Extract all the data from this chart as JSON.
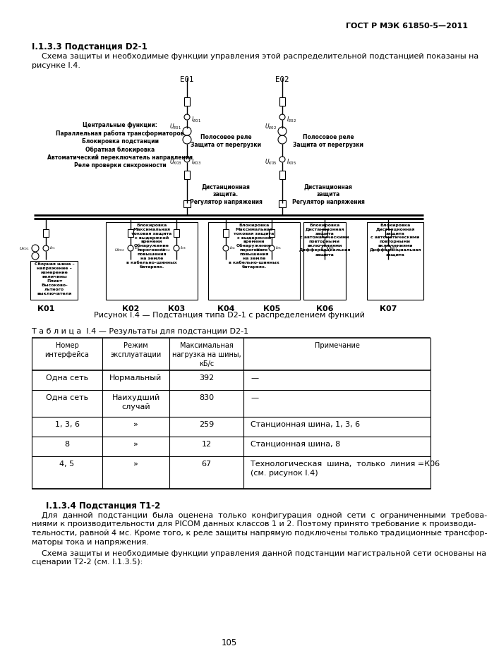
{
  "header": "ГОСТ Р МЭК 61850-5—2011",
  "section_title": "I.1.3.3 Подстанция D2-1",
  "section_intro_line1": "    Схема защиты и необходимые функции управления этой распределительной подстанцией показаны на",
  "section_intro_line2": "рисунке I.4.",
  "figure_caption": "Рисунок I.4 — Подстанция типа D2-1 с распределением функций",
  "table_title": "Т а б л и ц а  I.4 — Результаты для подстанции D2-1",
  "table_headers": [
    "Номер\nинтерфейса",
    "Режим\nэксплуатации",
    "Максимальная\nнагрузка на шины,\nкБ/с",
    "Примечание"
  ],
  "table_data": [
    [
      "Одна сеть",
      "Нормальный",
      "392",
      "—"
    ],
    [
      "Одна сеть",
      "Наихудший\nслучай",
      "830",
      "—"
    ],
    [
      "1, 3, 6",
      "»",
      "259",
      "Станционная шина, 1, 3, 6"
    ],
    [
      "8",
      "»",
      "12",
      "Станционная шина, 8"
    ],
    [
      "4, 5",
      "»",
      "67",
      "Технологическая  шина,  только  линия =К06\n(см. рисунок I.4)"
    ]
  ],
  "section2_title": "I.1.3.4 Подстанция T1-2",
  "section2_para1_lines": [
    "    Для  данной  подстанции  была  оценена  только  конфигурация  одной  сети  с  ограниченными  требова-",
    "ниями к производительности для PICOM данных классов 1 и 2. Поэтому принято требование к производи-",
    "тельности, равной 4 мс. Кроме того, к реле защиты напрямую подключены только традиционные трансфор-",
    "маторы тока и напряжения."
  ],
  "section2_para2_lines": [
    "    Схема защиты и необходимые функции управления данной подстанции магистральной сети основаны на",
    "сценарии T2-2 (см. I.1.3.5):"
  ],
  "page_number": "105",
  "bg_color": "#ffffff"
}
